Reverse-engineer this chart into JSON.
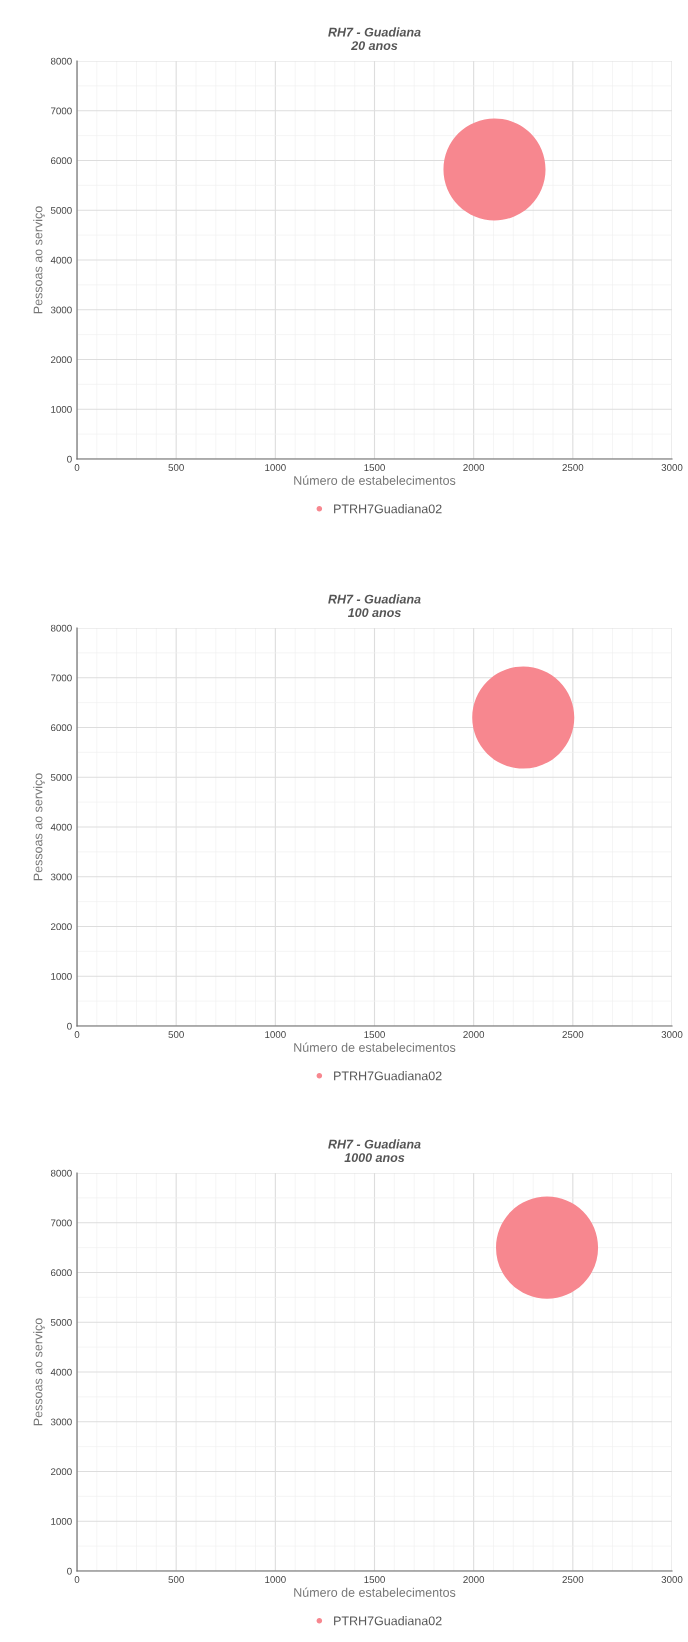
{
  "chart_data": [
    {
      "type": "bubble",
      "title": "RH7 - Guadiana\n20 anos",
      "xlabel": "Número de estabelecimentos",
      "ylabel": "Pessoas ao serviço",
      "xlim": [
        0,
        3000
      ],
      "xticks": [
        0,
        500,
        1000,
        1500,
        2000,
        2500,
        3000
      ],
      "ylim": [
        0,
        8000
      ],
      "yticks": [
        0,
        1000,
        2000,
        3000,
        4000,
        5000,
        6000,
        7000,
        8000
      ],
      "grid": true,
      "legend": "bottom",
      "series": [
        {
          "name": "PTRH7Guadiana02",
          "color": "#f7878f",
          "x": [
            2105
          ],
          "values": [
            5820
          ],
          "sizes": [
            1
          ]
        }
      ]
    },
    {
      "type": "bubble",
      "title": "RH7 - Guadiana\n100 anos",
      "xlabel": "Número de estabelecimentos",
      "ylabel": "Pessoas ao serviço",
      "xlim": [
        0,
        3000
      ],
      "xticks": [
        0,
        500,
        1000,
        1500,
        2000,
        2500,
        3000
      ],
      "ylim": [
        0,
        8000
      ],
      "yticks": [
        0,
        1000,
        2000,
        3000,
        4000,
        5000,
        6000,
        7000,
        8000
      ],
      "grid": true,
      "legend": "bottom",
      "series": [
        {
          "name": "PTRH7Guadiana02",
          "color": "#f7878f",
          "x": [
            2250
          ],
          "values": [
            6200
          ],
          "sizes": [
            1
          ]
        }
      ]
    },
    {
      "type": "bubble",
      "title": "RH7 - Guadiana\n1000 anos",
      "xlabel": "Número de estabelecimentos",
      "ylabel": "Pessoas ao serviço",
      "xlim": [
        0,
        3000
      ],
      "xticks": [
        0,
        500,
        1000,
        1500,
        2000,
        2500,
        3000
      ],
      "ylim": [
        0,
        8000
      ],
      "yticks": [
        0,
        1000,
        2000,
        3000,
        4000,
        5000,
        6000,
        7000,
        8000
      ],
      "grid": true,
      "legend": "bottom",
      "series": [
        {
          "name": "PTRH7Guadiana02",
          "color": "#f7878f",
          "x": [
            2370
          ],
          "values": [
            6500
          ],
          "sizes": [
            1
          ]
        }
      ]
    }
  ]
}
